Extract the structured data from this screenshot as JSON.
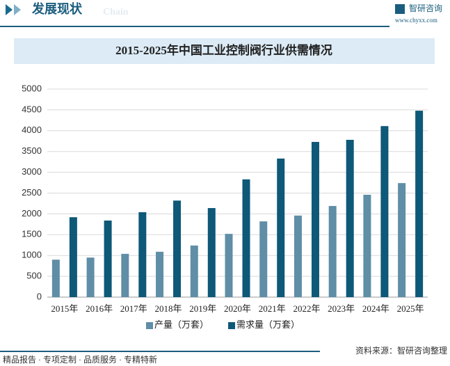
{
  "header": {
    "title": "发展现状",
    "subtitle": "Chain",
    "brand": "智研咨询",
    "url": "www.chyxx.com"
  },
  "chart_data": {
    "type": "bar",
    "title": "2015-2025年中国工业控制阀行业供需情况",
    "categories": [
      "2015年",
      "2016年",
      "2017年",
      "2018年",
      "2019年",
      "2020年",
      "2021年",
      "2022年",
      "2023年",
      "2024年",
      "2025年"
    ],
    "series": [
      {
        "name": "产量（万套）",
        "color": "#5f8ea6",
        "values": [
          900,
          950,
          1040,
          1090,
          1240,
          1520,
          1820,
          1960,
          2190,
          2460,
          2740
        ]
      },
      {
        "name": "需求量（万套）",
        "color": "#0e5878",
        "values": [
          1920,
          1840,
          2040,
          2320,
          2140,
          2830,
          3330,
          3730,
          3780,
          4110,
          4480
        ]
      }
    ],
    "ylim": [
      0,
      5000
    ],
    "yticks": [
      0,
      500,
      1000,
      1500,
      2000,
      2500,
      3000,
      3500,
      4000,
      4500,
      5000
    ],
    "grid": true,
    "legend": "bottom"
  },
  "footer": {
    "slogan": "精品报告 · 专项定制 · 品质服务 · 专精特新",
    "source": "资料来源：智研咨询整理"
  }
}
